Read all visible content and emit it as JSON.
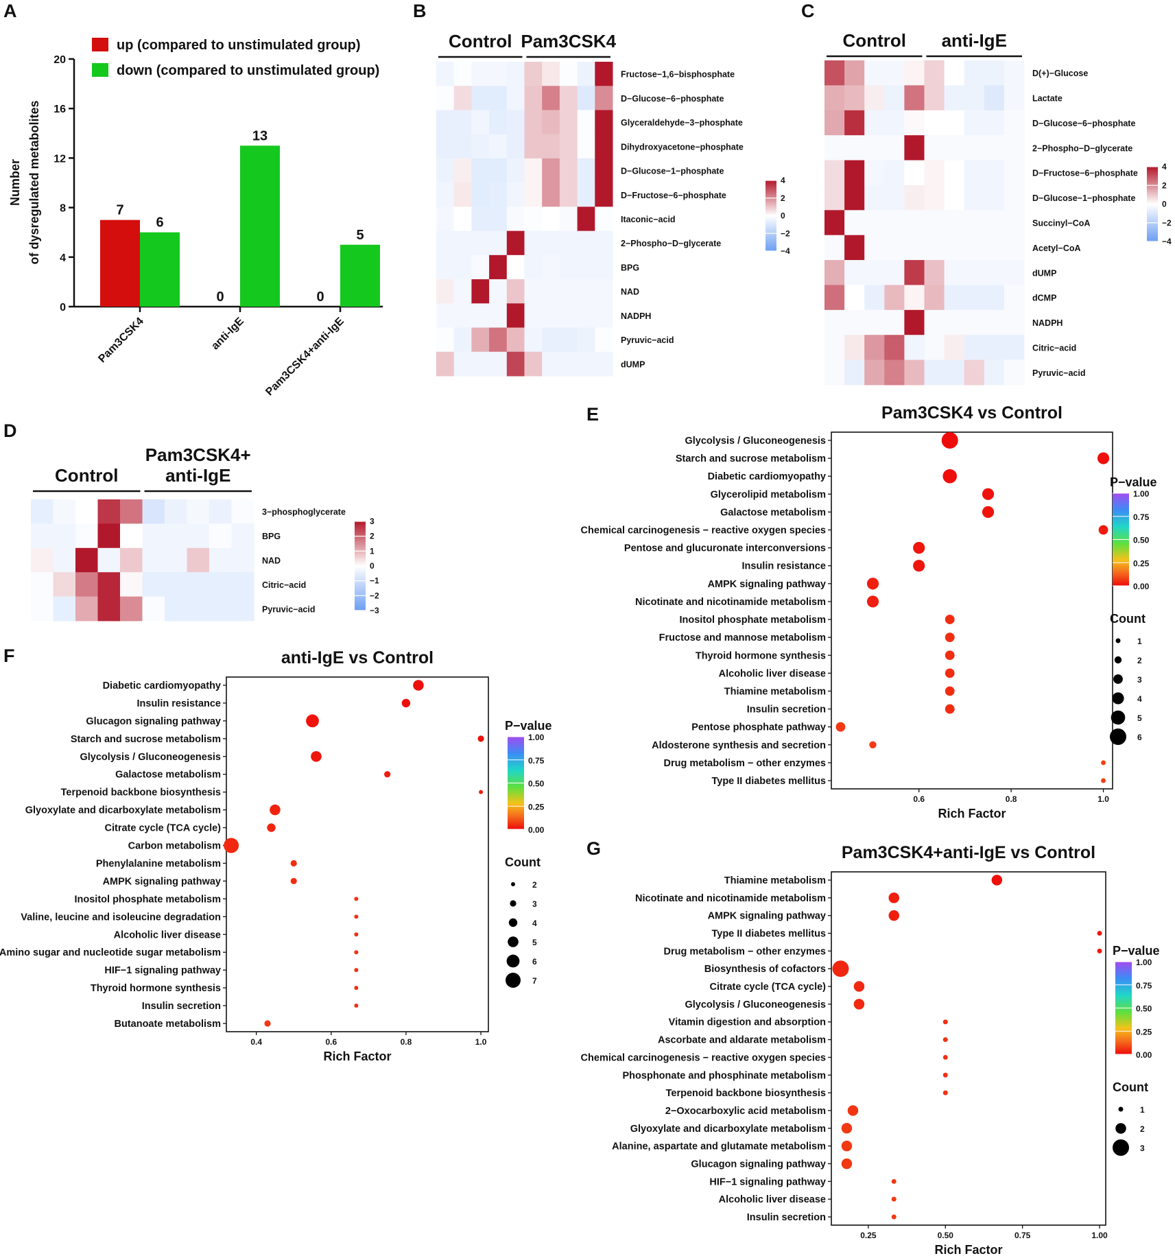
{
  "chart_data": [
    {
      "panel": "A",
      "type": "bar",
      "ylabel": "Number\nof dysregulated metabolites",
      "categories": [
        "Pam3CSK4",
        "anti-IgE",
        "Pam3CSK4+anti-IgE"
      ],
      "series": [
        {
          "name": "up (compared to unstimulated group)",
          "color": "#d40d0d",
          "values": [
            7,
            0,
            0
          ]
        },
        {
          "name": "down (compared to unstimulated group)",
          "color": "#14c81e",
          "values": [
            6,
            13,
            5
          ]
        }
      ],
      "ylim": [
        0,
        20
      ],
      "yticks": [
        0,
        4,
        8,
        12,
        16,
        20
      ]
    },
    {
      "panel": "B",
      "type": "heatmap",
      "groups": [
        "Control",
        "Pam3CSK4"
      ],
      "rows": [
        "Fructose−1,6−bisphosphate",
        "D−Glucose−6−phosphate",
        "Glyceraldehyde−3−phosphate",
        "Dihydroxyacetone−phosphate",
        "D−Glucose−1−phosphate",
        "D−Fructose−6−phosphate",
        "Itaconic−acid",
        "2−Phospho−D−glycerate",
        "BPG",
        "NAD",
        "NADPH",
        "Pyruvic−acid",
        "dUMP"
      ],
      "values": [
        [
          -0.4,
          -0.1,
          -0.3,
          -0.3,
          -0.4,
          0.9,
          0.4,
          -0.1,
          -0.5,
          4
        ],
        [
          -0.1,
          0.6,
          -0.8,
          -0.8,
          -0.4,
          1,
          2.2,
          0.8,
          -0.9,
          2
        ],
        [
          -0.6,
          -0.6,
          -0.4,
          -0.7,
          -0.6,
          1,
          1.2,
          0.8,
          -0.1,
          4
        ],
        [
          -0.6,
          -0.6,
          -0.5,
          -0.4,
          -0.6,
          1,
          1,
          0.8,
          -0.1,
          4
        ],
        [
          -0.5,
          0.3,
          -0.8,
          -0.8,
          -0.5,
          0.2,
          1.8,
          0.8,
          -0.7,
          4
        ],
        [
          -0.4,
          0.4,
          -0.8,
          -0.7,
          -0.4,
          0.2,
          1.8,
          0.8,
          -0.7,
          4
        ],
        [
          -0.3,
          0,
          -0.7,
          -0.7,
          -0.2,
          -0.1,
          0,
          -0.2,
          4,
          -0.1
        ],
        [
          -0.4,
          -0.4,
          -0.4,
          -0.4,
          4,
          -0.4,
          -0.4,
          -0.4,
          -0.4,
          -0.4
        ],
        [
          -0.4,
          -0.4,
          -0.2,
          4,
          0,
          -0.4,
          -0.3,
          -0.4,
          -0.4,
          -0.4
        ],
        [
          0.3,
          -0.3,
          4,
          -0.3,
          1,
          -0.3,
          -0.3,
          -0.3,
          -0.3,
          -0.3
        ],
        [
          -0.3,
          -0.3,
          -0.3,
          -0.3,
          4,
          -0.3,
          -0.3,
          -0.3,
          -0.3,
          -0.3
        ],
        [
          -0.1,
          -0.5,
          1.4,
          2.4,
          1.2,
          -0.4,
          -0.6,
          -0.6,
          -0.5,
          -0.1
        ],
        [
          1,
          -0.4,
          -0.4,
          -0.4,
          3.2,
          1,
          -0.4,
          -0.4,
          -0.4,
          -0.4
        ]
      ],
      "colorbar": {
        "ticks": [
          "4",
          "2",
          "0",
          "−2",
          "−4"
        ],
        "range": [
          -4,
          4
        ]
      }
    },
    {
      "panel": "C",
      "type": "heatmap",
      "groups": [
        "Control",
        "anti-IgE"
      ],
      "rows": [
        "D(+)−Glucose",
        "Lactate",
        "D−Glucose−6−phosphate",
        "2−Phospho−D−glycerate",
        "D−Fructose−6−phosphate",
        "D−Glucose−1−phosphate",
        "Succinyl−CoA",
        "Acetyl−CoA",
        "dUMP",
        "dCMP",
        "NADPH",
        "Citric−acid",
        "Pyruvic−acid"
      ],
      "values": [
        [
          3,
          1.6,
          -0.3,
          -0.3,
          0.2,
          0.8,
          0,
          -0.5,
          -0.5,
          -0.3
        ],
        [
          1.4,
          1.2,
          0.3,
          -0.5,
          2.4,
          0.8,
          -0.5,
          -0.5,
          -0.9,
          -0.3
        ],
        [
          1.5,
          3.6,
          -0.4,
          -0.4,
          0.1,
          0,
          0,
          -0.4,
          -0.4,
          -0.2
        ],
        [
          -0.2,
          -0.2,
          -0.2,
          -0.2,
          4,
          -0.2,
          -0.2,
          -0.2,
          -0.2,
          -0.2
        ],
        [
          0.6,
          4,
          -0.3,
          -0.4,
          0,
          0.2,
          0,
          -0.4,
          -0.4,
          -0.2
        ],
        [
          0.6,
          4,
          -0.4,
          -0.4,
          0.3,
          0.2,
          0,
          -0.4,
          -0.4,
          -0.2
        ],
        [
          4,
          -0.2,
          -0.2,
          -0.2,
          -0.2,
          -0.2,
          -0.2,
          -0.2,
          -0.2,
          -0.2
        ],
        [
          -0.2,
          4,
          -0.2,
          -0.2,
          -0.2,
          -0.2,
          -0.2,
          -0.2,
          -0.2,
          -0.2
        ],
        [
          1.4,
          -0.3,
          -0.3,
          -0.3,
          3.4,
          1.1,
          -0.3,
          -0.3,
          -0.3,
          -0.3
        ],
        [
          2.5,
          0,
          -0.6,
          1.2,
          0.2,
          1.2,
          -0.6,
          -0.6,
          -0.6,
          -0.2
        ],
        [
          -0.2,
          -0.2,
          -0.2,
          -0.2,
          4,
          -0.2,
          -0.2,
          -0.2,
          -0.2,
          -0.2
        ],
        [
          -0.2,
          0.4,
          1.8,
          2.8,
          -0.4,
          -0.2,
          0.3,
          -0.6,
          -0.6,
          -0.6
        ],
        [
          -0.2,
          -0.6,
          1.5,
          2.2,
          1.2,
          -0.6,
          -0.6,
          0.8,
          -0.5,
          -0.2
        ]
      ],
      "colorbar": {
        "ticks": [
          "4",
          "2",
          "0",
          "−2",
          "−4"
        ],
        "range": [
          -4,
          4
        ]
      }
    },
    {
      "panel": "D",
      "type": "heatmap",
      "groups": [
        "Control",
        "Pam3CSK4+\nanti-IgE"
      ],
      "rows": [
        "3−phosphoglycerate",
        "BPG",
        "NAD",
        "Citric−acid",
        "Pyruvic−acid"
      ],
      "values": [
        [
          -0.5,
          -0.2,
          0,
          2.6,
          1.8,
          -0.8,
          -0.4,
          -0.2,
          -0.4,
          -0.1
        ],
        [
          -0.3,
          -0.3,
          -0.1,
          3,
          0,
          -0.3,
          -0.3,
          -0.3,
          -0.1,
          -0.3
        ],
        [
          0.2,
          -0.3,
          3,
          -0.3,
          0.7,
          -0.3,
          -0.3,
          0.7,
          -0.3,
          -0.3
        ],
        [
          -0.1,
          0.5,
          1.7,
          2.8,
          0.1,
          -0.5,
          -0.5,
          -0.5,
          -0.5,
          -0.5
        ],
        [
          -0.1,
          -0.5,
          1.1,
          2.8,
          1.5,
          -0.1,
          -0.5,
          -0.5,
          -0.5,
          -0.5
        ]
      ],
      "colorbar": {
        "ticks": [
          "3",
          "2",
          "1",
          "0",
          "−1",
          "−2",
          "−3"
        ],
        "range": [
          -3,
          3
        ]
      }
    },
    {
      "panel": "E",
      "type": "scatter",
      "title": "Pam3CSK4 vs Control",
      "xlabel": "Rich Factor",
      "xlim": [
        0.41,
        1.02
      ],
      "xticks": [
        "0.6",
        "0.8",
        "1.0"
      ],
      "pathways": [
        "Glycolysis / Gluconeogenesis",
        "Starch and sucrose metabolism",
        "Diabetic cardiomyopathy",
        "Glycerolipid metabolism",
        "Galactose metabolism",
        "Chemical carcinogenesis − reactive oxygen species",
        "Pentose and glucuronate interconversions",
        "Insulin resistance",
        "AMPK signaling pathway",
        "Nicotinate and nicotinamide metabolism",
        "Inositol phosphate metabolism",
        "Fructose and mannose metabolism",
        "Thyroid hormone synthesis",
        "Alcoholic liver disease",
        "Thiamine metabolism",
        "Insulin secretion",
        "Pentose phosphate pathway",
        "Aldosterone synthesis and secretion",
        "Drug metabolism − other enzymes",
        "Type II diabetes mellitus"
      ],
      "rich_factor": [
        0.667,
        1.0,
        0.667,
        0.75,
        0.75,
        1.0,
        0.6,
        0.6,
        0.5,
        0.5,
        0.667,
        0.667,
        0.667,
        0.667,
        0.667,
        0.667,
        0.43,
        0.5,
        1.0,
        1.0
      ],
      "count": [
        6,
        4,
        5,
        4,
        4,
        3,
        4,
        4,
        4,
        4,
        3,
        3,
        3,
        3,
        3,
        3,
        3,
        2,
        1,
        1
      ],
      "p_value": [
        0.003,
        0.01,
        0.01,
        0.02,
        0.02,
        0.04,
        0.03,
        0.03,
        0.05,
        0.05,
        0.09,
        0.09,
        0.09,
        0.09,
        0.09,
        0.09,
        0.12,
        0.13,
        0.14,
        0.14
      ],
      "legend": {
        "pvalue_title": "P−value",
        "pvalue_ticks": [
          "1.00",
          "0.75",
          "0.50",
          "0.25",
          "0.00"
        ],
        "count_title": "Count",
        "count_levels": [
          "1",
          "2",
          "3",
          "4",
          "5",
          "6"
        ]
      }
    },
    {
      "panel": "F",
      "type": "scatter",
      "title": "anti-IgE vs Control",
      "xlabel": "Rich Factor",
      "xlim": [
        0.32,
        1.02
      ],
      "xticks": [
        "0.4",
        "0.6",
        "0.8",
        "1.0"
      ],
      "pathways": [
        "Diabetic cardiomyopathy",
        "Insulin resistance",
        "Glucagon signaling pathway",
        "Starch and sucrose metabolism",
        "Glycolysis / Gluconeogenesis",
        "Galactose metabolism",
        "Terpenoid backbone biosynthesis",
        "Glyoxylate and dicarboxylate metabolism",
        "Citrate cycle (TCA cycle)",
        "Carbon metabolism",
        "Phenylalanine metabolism",
        "AMPK signaling pathway",
        "Inositol phosphate metabolism",
        "Valine, leucine and isoleucine degradation",
        "Alcoholic liver disease",
        "Amino sugar and nucleotide sugar metabolism",
        "HIF−1 signaling pathway",
        "Thyroid hormone synthesis",
        "Insulin secretion",
        "Butanoate metabolism"
      ],
      "rich_factor": [
        0.833,
        0.8,
        0.55,
        1.0,
        0.56,
        0.75,
        1.0,
        0.45,
        0.44,
        0.333,
        0.5,
        0.5,
        0.667,
        0.667,
        0.667,
        0.667,
        0.667,
        0.667,
        0.667,
        0.43
      ],
      "count": [
        5,
        4,
        6,
        3,
        5,
        3,
        2,
        5,
        4,
        7,
        3,
        3,
        2,
        2,
        2,
        2,
        2,
        2,
        2,
        3
      ],
      "p_value": [
        0.01,
        0.01,
        0.02,
        0.02,
        0.03,
        0.04,
        0.05,
        0.06,
        0.07,
        0.08,
        0.09,
        0.09,
        0.1,
        0.1,
        0.1,
        0.1,
        0.1,
        0.1,
        0.1,
        0.12
      ],
      "legend": {
        "pvalue_title": "P−value",
        "pvalue_ticks": [
          "1.00",
          "0.75",
          "0.50",
          "0.25",
          "0.00"
        ],
        "count_title": "Count",
        "count_levels": [
          "2",
          "3",
          "4",
          "5",
          "6",
          "7"
        ]
      }
    },
    {
      "panel": "G",
      "type": "scatter",
      "title": "Pam3CSK4+anti-IgE vs Control",
      "xlabel": "Rich Factor",
      "xlim": [
        0.13,
        1.02
      ],
      "xticks": [
        "0.25",
        "0.50",
        "0.75",
        "1.00"
      ],
      "pathways": [
        "Thiamine metabolism",
        "Nicotinate and nicotinamide metabolism",
        "AMPK signaling pathway",
        "Type II diabetes mellitus",
        "Drug metabolism − other enzymes",
        "Biosynthesis of cofactors",
        "Citrate cycle (TCA cycle)",
        "Glycolysis / Gluconeogenesis",
        "Vitamin digestion and absorption",
        "Ascorbate and aldarate metabolism",
        "Chemical carcinogenesis − reactive oxygen species",
        "Phosphonate and phosphinate metabolism",
        "Terpenoid backbone biosynthesis",
        "2−Oxocarboxylic acid metabolism",
        "Glyoxylate and dicarboxylate metabolism",
        "Alanine, aspartate and glutamate metabolism",
        "Glucagon signaling pathway",
        "HIF−1 signaling pathway",
        "Alcoholic liver disease",
        "Insulin secretion"
      ],
      "rich_factor": [
        0.667,
        0.333,
        0.333,
        1.0,
        1.0,
        0.16,
        0.22,
        0.22,
        0.5,
        0.5,
        0.5,
        0.5,
        0.5,
        0.2,
        0.18,
        0.18,
        0.18,
        0.333,
        0.333,
        0.333
      ],
      "count": [
        2,
        2,
        2,
        1,
        1,
        3,
        2,
        2,
        1,
        1,
        1,
        1,
        1,
        2,
        2,
        2,
        2,
        1,
        1,
        1
      ],
      "p_value": [
        0.01,
        0.05,
        0.05,
        0.04,
        0.04,
        0.07,
        0.08,
        0.08,
        0.1,
        0.1,
        0.1,
        0.1,
        0.1,
        0.11,
        0.12,
        0.12,
        0.12,
        0.12,
        0.12,
        0.12
      ],
      "legend": {
        "pvalue_title": "P−value",
        "pvalue_ticks": [
          "1.00",
          "0.75",
          "0.50",
          "0.25",
          "0.00"
        ],
        "count_title": "Count",
        "count_levels": [
          "1",
          "2",
          "3"
        ]
      }
    }
  ]
}
